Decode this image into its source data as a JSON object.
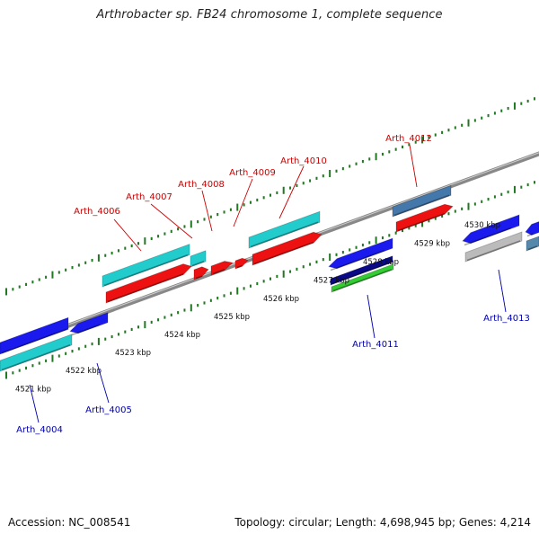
{
  "title": "Arthrobacter sp. FB24 chromosome 1, complete sequence",
  "footer": {
    "accession": "Accession: NC_008541",
    "summary": "Topology: circular; Length: 4,698,945 bp; Genes: 4,214"
  },
  "colors": {
    "backbone": "#888888",
    "tick": "#227722",
    "red": "#ee1111",
    "blue": "#1a1aee",
    "cyan": "#22cccc",
    "navy": "#0a0a88",
    "green": "#33cc33",
    "steel": "#4477aa",
    "gray": "#bbbbbb",
    "label_red": "#cc0000",
    "label_blue": "#0000aa"
  },
  "scale_labels": [
    {
      "kbp": 4521,
      "text": "4521 kbp"
    },
    {
      "kbp": 4522,
      "text": "4522 kbp"
    },
    {
      "kbp": 4523,
      "text": "4523 kbp"
    },
    {
      "kbp": 4524,
      "text": "4524 kbp"
    },
    {
      "kbp": 4525,
      "text": "4525 kbp"
    },
    {
      "kbp": 4526,
      "text": "4526 kbp"
    },
    {
      "kbp": 4527,
      "text": "4527 kbp"
    },
    {
      "kbp": 4528,
      "text": "4528 kbp"
    },
    {
      "kbp": 4529,
      "text": "4529 kbp"
    },
    {
      "kbp": 4530,
      "text": "4530 kbp"
    }
  ],
  "gene_labels": {
    "top": [
      "Arth_4006",
      "Arth_4007",
      "Arth_4008",
      "Arth_4009",
      "Arth_4010",
      "Arth_4012"
    ],
    "bottom": [
      "Arth_4004",
      "Arth_4005",
      "Arth_4011",
      "Arth_4013"
    ]
  }
}
